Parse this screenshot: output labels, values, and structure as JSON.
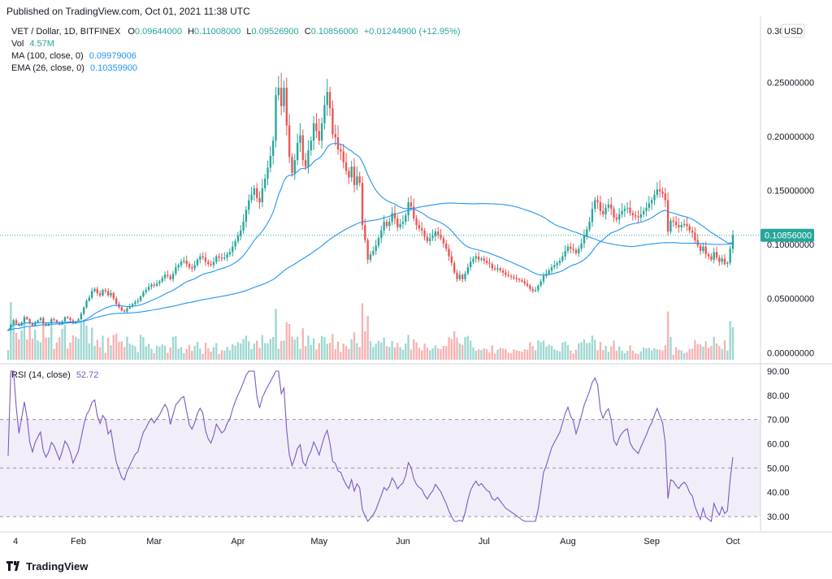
{
  "header": {
    "published": "Published on TradingView.com, Oct 01, 2021 11:38 UTC"
  },
  "legend": {
    "symbol": "VET / Dollar, 1D, BITFINEX",
    "open_label": "O",
    "open": "0.09644000",
    "high_label": "H",
    "high": "0.11008000",
    "low_label": "L",
    "low": "0.09526900",
    "close_label": "C",
    "close": "0.10856000",
    "change": "+0.01244900 (+12.95%)",
    "vol_label": "Vol",
    "vol": "4.57M",
    "ma_label": "MA (100, close, 0)",
    "ma": "0.09979006",
    "ema_label": "EMA (26, close, 0)",
    "ema": "0.10359900",
    "rsi_label": "RSI (14, close)",
    "rsi": "52.72"
  },
  "price_axis": {
    "currency": "USD",
    "top_label": "0.30",
    "ticks": [
      "0.25000000",
      "0.20000000",
      "0.15000000",
      "0.10000000",
      "0.05000000",
      "0.00000000"
    ],
    "last_price": "0.10856000"
  },
  "rsi_axis": {
    "ticks": [
      "90.00",
      "80.00",
      "70.00",
      "60.00",
      "50.00",
      "40.00",
      "30.00"
    ]
  },
  "time_axis": {
    "labels": [
      "4",
      "Feb",
      "Mar",
      "Apr",
      "May",
      "Jun",
      "Jul",
      "Aug",
      "Sep",
      "Oct"
    ]
  },
  "footer": {
    "brand": "TradingView"
  },
  "colors": {
    "up": "#26a69a",
    "down": "#ef5350",
    "ma": "#2196f3",
    "rsi": "#7e57c2",
    "rsi_band": "#ede7f6"
  },
  "chart_data": {
    "type": "candlestick",
    "price_range": [
      -0.008,
      0.305
    ],
    "rsi_range": [
      25,
      92
    ],
    "rsi_band": [
      30,
      70
    ],
    "closes_by_month": [
      {
        "month": "Jan",
        "points": [
          0.021,
          0.026,
          0.03,
          0.027,
          0.025,
          0.028,
          0.033,
          0.031,
          0.027,
          0.025,
          0.028,
          0.03,
          0.032,
          0.027,
          0.025,
          0.027,
          0.031,
          0.03,
          0.028,
          0.026,
          0.029,
          0.033,
          0.032,
          0.03,
          0.027,
          0.029
        ]
      },
      {
        "month": "Feb",
        "points": [
          0.031,
          0.036,
          0.042,
          0.048,
          0.051,
          0.057,
          0.059,
          0.055,
          0.053,
          0.058,
          0.057,
          0.053,
          0.055,
          0.05,
          0.045,
          0.042,
          0.039,
          0.038,
          0.041,
          0.043,
          0.045,
          0.047,
          0.048,
          0.052,
          0.056,
          0.058,
          0.061,
          0.063
        ]
      },
      {
        "month": "Mar",
        "points": [
          0.062,
          0.064,
          0.066,
          0.069,
          0.072,
          0.071,
          0.068,
          0.073,
          0.079,
          0.081,
          0.084,
          0.085,
          0.082,
          0.079,
          0.078,
          0.081,
          0.086,
          0.089,
          0.088,
          0.084,
          0.082,
          0.081,
          0.084,
          0.089,
          0.088,
          0.087,
          0.088,
          0.091,
          0.093,
          0.098,
          0.103
        ]
      },
      {
        "month": "Apr",
        "points": [
          0.108,
          0.113,
          0.121,
          0.132,
          0.141,
          0.146,
          0.152,
          0.143,
          0.139,
          0.152,
          0.161,
          0.171,
          0.182,
          0.196,
          0.238,
          0.245,
          0.228,
          0.245,
          0.21,
          0.181,
          0.166,
          0.178,
          0.194,
          0.201,
          0.178,
          0.172,
          0.187,
          0.196,
          0.212,
          0.205
        ]
      },
      {
        "month": "May",
        "points": [
          0.196,
          0.212,
          0.229,
          0.241,
          0.226,
          0.202,
          0.199,
          0.188,
          0.186,
          0.176,
          0.168,
          0.162,
          0.172,
          0.155,
          0.163,
          0.157,
          0.118,
          0.104,
          0.086,
          0.091,
          0.094,
          0.099,
          0.106,
          0.113,
          0.121,
          0.117,
          0.121,
          0.129,
          0.124,
          0.116,
          0.119
        ]
      },
      {
        "month": "Jun",
        "points": [
          0.121,
          0.127,
          0.139,
          0.135,
          0.124,
          0.118,
          0.115,
          0.113,
          0.107,
          0.103,
          0.106,
          0.108,
          0.112,
          0.109,
          0.106,
          0.101,
          0.096,
          0.089,
          0.083,
          0.074,
          0.068,
          0.072,
          0.068,
          0.073,
          0.079,
          0.084,
          0.087,
          0.089,
          0.086,
          0.087
        ]
      },
      {
        "month": "Jul",
        "points": [
          0.085,
          0.083,
          0.082,
          0.078,
          0.077,
          0.078,
          0.076,
          0.074,
          0.072,
          0.071,
          0.07,
          0.069,
          0.068,
          0.067,
          0.066,
          0.064,
          0.062,
          0.059,
          0.057,
          0.058,
          0.062,
          0.066,
          0.071,
          0.073,
          0.076,
          0.079,
          0.081,
          0.083,
          0.085,
          0.089,
          0.094
        ]
      },
      {
        "month": "Aug",
        "points": [
          0.098,
          0.096,
          0.095,
          0.092,
          0.096,
          0.101,
          0.108,
          0.114,
          0.121,
          0.133,
          0.141,
          0.139,
          0.131,
          0.128,
          0.134,
          0.137,
          0.133,
          0.125,
          0.123,
          0.128,
          0.131,
          0.133,
          0.134,
          0.129,
          0.127,
          0.126,
          0.125,
          0.128,
          0.131,
          0.134,
          0.138
        ]
      },
      {
        "month": "Sep",
        "points": [
          0.141,
          0.146,
          0.151,
          0.149,
          0.147,
          0.141,
          0.112,
          0.122,
          0.121,
          0.118,
          0.116,
          0.118,
          0.119,
          0.117,
          0.113,
          0.111,
          0.104,
          0.099,
          0.094,
          0.098,
          0.091,
          0.089,
          0.086,
          0.093,
          0.088,
          0.084,
          0.087,
          0.082,
          0.083,
          0.096
        ]
      },
      {
        "month": "Oct",
        "points": [
          0.10856
        ]
      }
    ],
    "note_series": [
      "Price (candles)",
      "Volume",
      "MA (100)",
      "EMA (26)",
      "RSI (14)"
    ]
  }
}
